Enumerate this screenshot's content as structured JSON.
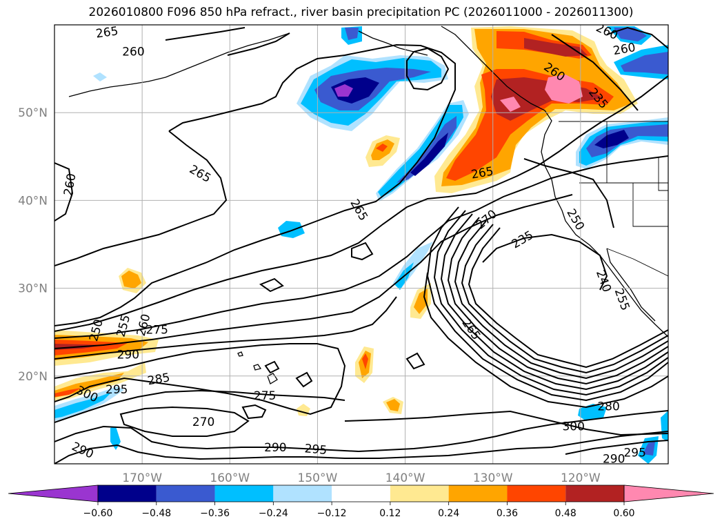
{
  "title": "2026010800 F096 850 hPa refract., river basin precipitation PC (2026011000 - 2026011300)",
  "map": {
    "lon_range": [
      -180,
      -110
    ],
    "lat_range": [
      10,
      60
    ],
    "lat_labels": [
      {
        "lat": 50,
        "text": "50°N"
      },
      {
        "lat": 40,
        "text": "40°N"
      },
      {
        "lat": 30,
        "text": "30°N"
      },
      {
        "lat": 20,
        "text": "20°N"
      }
    ],
    "lon_labels": [
      {
        "lon": -170,
        "text": "170°W"
      },
      {
        "lon": -160,
        "text": "160°W"
      },
      {
        "lon": -150,
        "text": "150°W"
      },
      {
        "lon": -140,
        "text": "140°W"
      },
      {
        "lon": -130,
        "text": "130°W"
      },
      {
        "lon": -120,
        "text": "120°W"
      }
    ],
    "contour_labels": [
      {
        "text": "265",
        "lon": -174,
        "lat": 59.1,
        "rot": -8
      },
      {
        "text": "260",
        "lon": -171,
        "lat": 56.9,
        "rot": 0
      },
      {
        "text": "260",
        "lon": -117,
        "lat": 59.2,
        "rot": 25
      },
      {
        "text": "260",
        "lon": -115,
        "lat": 57.2,
        "rot": -10
      },
      {
        "text": "260",
        "lon": -123,
        "lat": 54.6,
        "rot": 35
      },
      {
        "text": "235",
        "lon": -118,
        "lat": 51.6,
        "rot": 50
      },
      {
        "text": "260",
        "lon": -178.2,
        "lat": 41.8,
        "rot": -80
      },
      {
        "text": "265",
        "lon": -163.4,
        "lat": 43,
        "rot": 30
      },
      {
        "text": "265",
        "lon": -145.3,
        "lat": 38.9,
        "rot": 60
      },
      {
        "text": "265",
        "lon": -131.2,
        "lat": 43.1,
        "rot": -10
      },
      {
        "text": "270",
        "lon": -130.7,
        "lat": 37.8,
        "rot": -40
      },
      {
        "text": "235",
        "lon": -126.6,
        "lat": 35.5,
        "rot": -30
      },
      {
        "text": "250",
        "lon": -120.6,
        "lat": 37.8,
        "rot": 60
      },
      {
        "text": "240",
        "lon": -117.4,
        "lat": 30.8,
        "rot": 70
      },
      {
        "text": "255",
        "lon": -115.3,
        "lat": 28.7,
        "rot": 70
      },
      {
        "text": "275",
        "lon": -168.3,
        "lat": 25.2,
        "rot": 0
      },
      {
        "text": "250",
        "lon": -175.2,
        "lat": 25.2,
        "rot": -75
      },
      {
        "text": "255",
        "lon": -172.1,
        "lat": 25.7,
        "rot": -75
      },
      {
        "text": "260",
        "lon": -169.8,
        "lat": 25.8,
        "rot": -75
      },
      {
        "text": "265",
        "lon": -132.5,
        "lat": 25.3,
        "rot": 55
      },
      {
        "text": "290",
        "lon": -171.6,
        "lat": 22.4,
        "rot": 0
      },
      {
        "text": "285",
        "lon": -168.1,
        "lat": 19.6,
        "rot": -10
      },
      {
        "text": "295",
        "lon": -172.9,
        "lat": 18.4,
        "rot": 0
      },
      {
        "text": "300",
        "lon": -176.3,
        "lat": 17.9,
        "rot": 25
      },
      {
        "text": "275",
        "lon": -156,
        "lat": 17.7,
        "rot": 0
      },
      {
        "text": "270",
        "lon": -163,
        "lat": 14.7,
        "rot": 0
      },
      {
        "text": "290",
        "lon": -176.8,
        "lat": 11.5,
        "rot": 25
      },
      {
        "text": "290",
        "lon": -154.8,
        "lat": 11.8,
        "rot": 0
      },
      {
        "text": "295",
        "lon": -150.2,
        "lat": 11.6,
        "rot": 5
      },
      {
        "text": "280",
        "lon": -116.8,
        "lat": 16.5,
        "rot": 0
      },
      {
        "text": "300",
        "lon": -120.8,
        "lat": 14.2,
        "rot": 0
      },
      {
        "text": "295",
        "lon": -113.8,
        "lat": 11.2,
        "rot": 0
      },
      {
        "text": "290",
        "lon": -116.2,
        "lat": 10.5,
        "rot": 0
      }
    ]
  },
  "colorbar": {
    "levels": [
      -0.6,
      -0.48,
      -0.36,
      -0.24,
      -0.12,
      0.12,
      0.24,
      0.36,
      0.48,
      0.6
    ],
    "labels": [
      "−0.60",
      "−0.48",
      "−0.36",
      "−0.24",
      "−0.12",
      "0.12",
      "0.24",
      "0.36",
      "0.48",
      "0.60"
    ],
    "colors": [
      "#9a35d0",
      "#00008b",
      "#3a5ad0",
      "#00bfff",
      "#b0e2ff",
      "#ffffff",
      "#ffe991",
      "#ffa500",
      "#ff4500",
      "#b22222",
      "#ff88b0"
    ]
  },
  "colors": {
    "grid": "#b0b0b0",
    "contour": "#000000",
    "frame": "#000000"
  }
}
